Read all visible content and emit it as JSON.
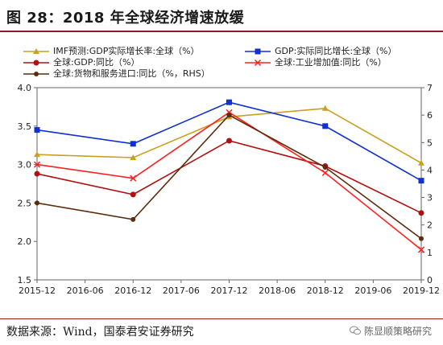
{
  "header": {
    "title": "图 28：2018 年全球经济增速放缓"
  },
  "footer": {
    "source": "数据来源：Wind，国泰君安证券研究",
    "watermark": "陈显顺策略研究"
  },
  "chart_data": {
    "type": "line",
    "x": [
      "2015-12",
      "2016-06",
      "2016-12",
      "2017-06",
      "2017-12",
      "2018-06",
      "2018-12",
      "2019-06",
      "2019-12"
    ],
    "ylim_left": [
      1.5,
      4.0
    ],
    "yticks_left": [
      "1.5",
      "2.0",
      "2.5",
      "3.0",
      "3.5",
      "4.0"
    ],
    "ylim_right": [
      0,
      7
    ],
    "yticks_right": [
      "0",
      "1",
      "2",
      "3",
      "4",
      "5",
      "6",
      "7"
    ],
    "grid": false,
    "legend_position": "top",
    "series": [
      {
        "name": "IMF预测:GDP实际增长率:全球（%）",
        "axis": "left",
        "color": "#c9a020",
        "marker": "triangle",
        "x": [
          "2015-12",
          "2016-12",
          "2017-12",
          "2018-12",
          "2019-12"
        ],
        "values": [
          3.13,
          3.09,
          3.62,
          3.73,
          3.02
        ]
      },
      {
        "name": "GDP:实际同比增长:全球（%）",
        "axis": "left",
        "color": "#1030d0",
        "marker": "square",
        "x": [
          "2015-12",
          "2016-12",
          "2017-12",
          "2018-12",
          "2019-12"
        ],
        "values": [
          3.45,
          3.27,
          3.81,
          3.5,
          2.79
        ]
      },
      {
        "name": "全球:GDP:同比（%）",
        "axis": "left",
        "color": "#b01010",
        "marker": "circle",
        "x": [
          "2015-12",
          "2016-12",
          "2017-12",
          "2018-12",
          "2019-12"
        ],
        "values": [
          2.88,
          2.61,
          3.31,
          2.98,
          2.37
        ]
      },
      {
        "name": "全球:工业增加值:同比（%）",
        "axis": "right",
        "color": "#ff2020",
        "marker": "x",
        "x": [
          "2015-12",
          "2016-12",
          "2017-12",
          "2018-12",
          "2019-12"
        ],
        "values": [
          4.2,
          3.7,
          6.1,
          3.9,
          1.1
        ]
      },
      {
        "name": "全球:货物和服务进口:同比（%，RHS）",
        "axis": "right",
        "color": "#5c2c0c",
        "marker": "circle",
        "x": [
          "2015-12",
          "2016-12",
          "2017-12",
          "2018-12",
          "2019-12"
        ],
        "values": [
          2.8,
          2.2,
          6.0,
          4.1,
          1.5
        ]
      }
    ]
  }
}
